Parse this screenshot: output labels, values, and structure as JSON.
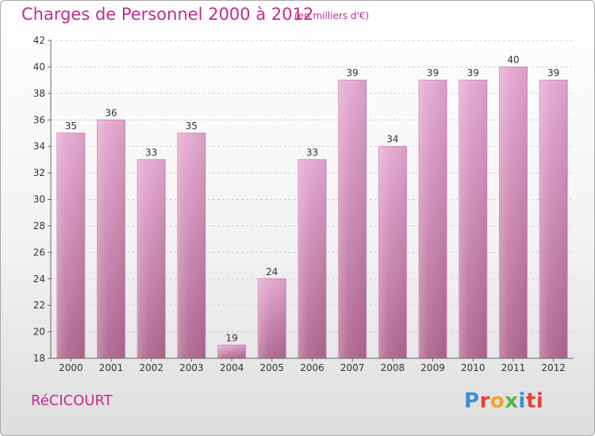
{
  "title": "Charges de Personnel 2000 à 2012",
  "subtitle": "(en milliers d'€)",
  "commune": "RéCICOURT",
  "logo": {
    "text": "Proxiti",
    "letters": [
      "P",
      "r",
      "o",
      "x",
      "i",
      "ti"
    ]
  },
  "colors": {
    "title": "#c42b8e",
    "bar_top": "#e6a9d2",
    "bar_bottom": "#b0678f",
    "axis": "#666666"
  },
  "chart_data": {
    "type": "bar",
    "categories": [
      "2000",
      "2001",
      "2002",
      "2003",
      "2004",
      "2005",
      "2006",
      "2007",
      "2008",
      "2009",
      "2010",
      "2011",
      "2012"
    ],
    "values": [
      35,
      36,
      33,
      35,
      19,
      24,
      33,
      39,
      34,
      39,
      39,
      40,
      39
    ],
    "title": "Charges de Personnel 2000 à 2012",
    "subtitle": "(en milliers d'€)",
    "xlabel": "",
    "ylabel": "",
    "ylim": [
      18,
      42
    ],
    "yticks": [
      18,
      20,
      22,
      24,
      26,
      28,
      30,
      32,
      34,
      36,
      38,
      40,
      42
    ],
    "grid": true,
    "legend": "none"
  }
}
